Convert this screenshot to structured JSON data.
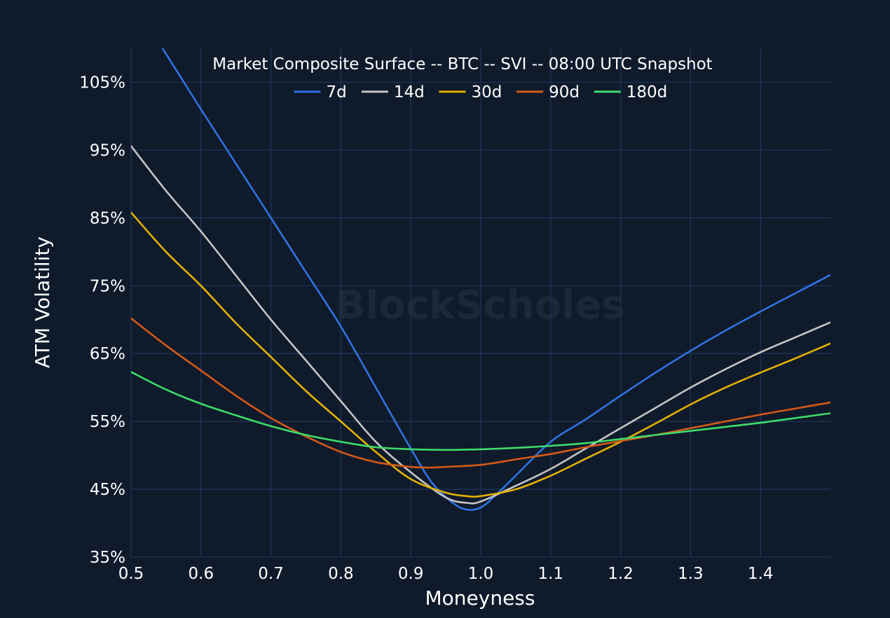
{
  "watermark": "BlockScholes",
  "chart_data": {
    "type": "line",
    "title": "Market Composite Surface -- BTC -- SVI -- 08:00 UTC Snapshot",
    "xlabel": "Moneyness",
    "ylabel": "ATM Volatility",
    "xlim": [
      0.5,
      1.5
    ],
    "ylim": [
      35,
      110
    ],
    "x_ticks": [
      "0.5",
      "0.6",
      "0.7",
      "0.8",
      "0.9",
      "1.0",
      "1.1",
      "1.2",
      "1.3",
      "1.4"
    ],
    "y_ticks": [
      "35%",
      "45%",
      "55%",
      "65%",
      "75%",
      "85%",
      "95%",
      "105%"
    ],
    "grid": true,
    "legend_position": "top",
    "colors": {
      "background": "#0f1a2b",
      "grid": "#1f3458"
    },
    "series": [
      {
        "name": "7d",
        "color": "#2f73e0",
        "x": [
          0.545,
          0.6,
          0.65,
          0.7,
          0.75,
          0.8,
          0.85,
          0.9,
          0.93,
          0.96,
          0.98,
          1.0,
          1.02,
          1.05,
          1.1,
          1.15,
          1.2,
          1.25,
          1.3,
          1.35,
          1.4,
          1.45,
          1.5
        ],
        "y": [
          110,
          101,
          93,
          85,
          77,
          69,
          60,
          51,
          46,
          43,
          42,
          42.3,
          44,
          47,
          52,
          55.3,
          58.8,
          62.2,
          65.4,
          68.4,
          71.2,
          73.9,
          76.6
        ]
      },
      {
        "name": "14d",
        "color": "#c4c4c4",
        "x": [
          0.5,
          0.55,
          0.6,
          0.65,
          0.7,
          0.75,
          0.8,
          0.85,
          0.9,
          0.95,
          0.98,
          1.0,
          1.05,
          1.1,
          1.15,
          1.2,
          1.25,
          1.3,
          1.35,
          1.4,
          1.45,
          1.5
        ],
        "y": [
          95.6,
          89,
          83,
          76.5,
          70,
          64,
          58,
          52,
          47.5,
          43.8,
          43,
          43.2,
          45.5,
          48,
          51,
          54,
          57,
          60,
          62.7,
          65.2,
          67.4,
          69.6
        ]
      },
      {
        "name": "30d",
        "color": "#e3b100",
        "x": [
          0.5,
          0.55,
          0.6,
          0.65,
          0.7,
          0.75,
          0.8,
          0.85,
          0.9,
          0.95,
          0.98,
          1.0,
          1.05,
          1.1,
          1.15,
          1.2,
          1.25,
          1.3,
          1.35,
          1.4,
          1.45,
          1.5
        ],
        "y": [
          85.8,
          80,
          75,
          69.5,
          64.5,
          59.5,
          55,
          50.5,
          46.5,
          44.5,
          44,
          44,
          45,
          47,
          49.5,
          52,
          54.7,
          57.5,
          60,
          62.2,
          64.3,
          66.5
        ]
      },
      {
        "name": "90d",
        "color": "#d35a17",
        "x": [
          0.5,
          0.55,
          0.6,
          0.65,
          0.7,
          0.75,
          0.8,
          0.85,
          0.9,
          0.93,
          0.95,
          1.0,
          1.05,
          1.1,
          1.15,
          1.2,
          1.25,
          1.3,
          1.35,
          1.4,
          1.45,
          1.5
        ],
        "y": [
          70.2,
          66.2,
          62.5,
          58.8,
          55.5,
          52.8,
          50.5,
          49,
          48.3,
          48.2,
          48.3,
          48.6,
          49.4,
          50.2,
          51.2,
          52.1,
          53,
          54,
          55,
          56,
          56.9,
          57.8
        ]
      },
      {
        "name": "180d",
        "color": "#3ddc6a",
        "x": [
          0.5,
          0.55,
          0.6,
          0.65,
          0.7,
          0.75,
          0.8,
          0.85,
          0.9,
          0.95,
          1.0,
          1.05,
          1.1,
          1.15,
          1.2,
          1.25,
          1.3,
          1.35,
          1.4,
          1.45,
          1.5
        ],
        "y": [
          62.3,
          59.7,
          57.6,
          55.9,
          54.3,
          53,
          52,
          51.2,
          50.9,
          50.8,
          50.9,
          51.1,
          51.4,
          51.8,
          52.4,
          53,
          53.6,
          54.2,
          54.8,
          55.5,
          56.2
        ]
      }
    ]
  }
}
